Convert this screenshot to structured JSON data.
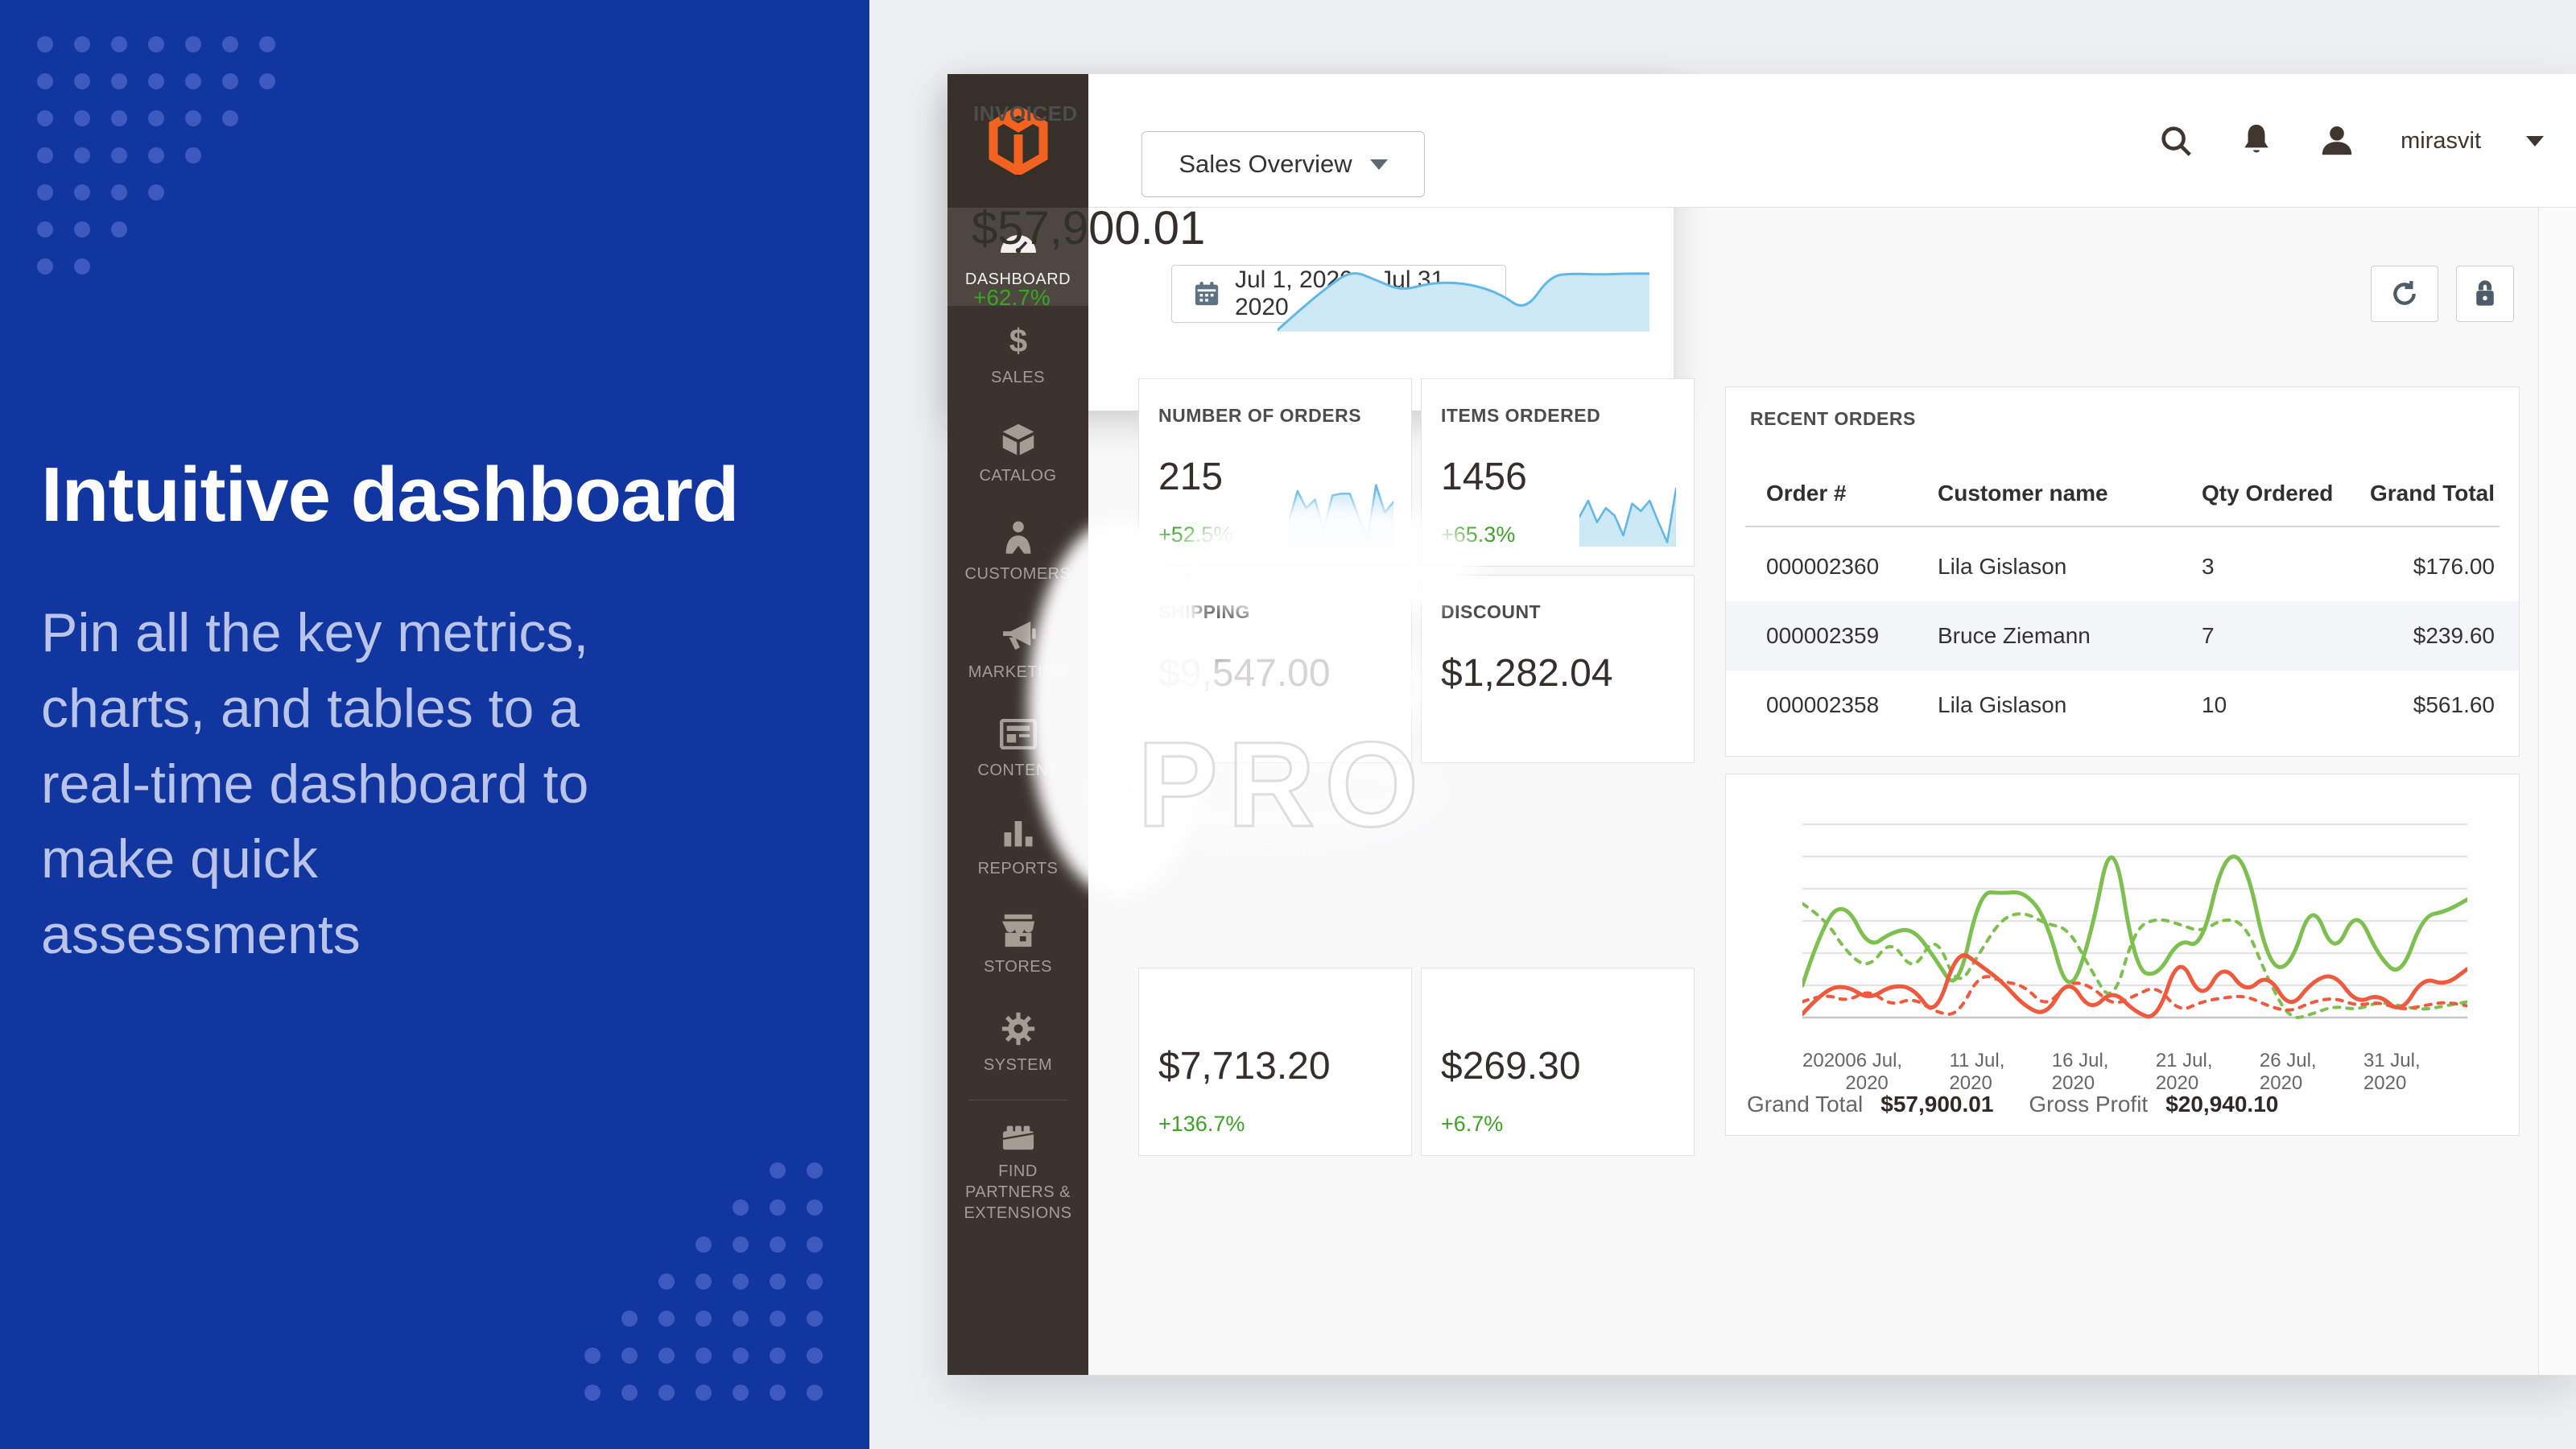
{
  "left_panel": {
    "heading": "Intuitive dashboard",
    "body_lines": [
      "Pin all the key metrics,",
      "charts, and tables to a",
      "real-time dashboard to",
      "make quick",
      "assessments"
    ],
    "bg_color": "#1236a0",
    "dot_color": "#3f5abf",
    "dots_top_left_rows": [
      7,
      7,
      6,
      5,
      4,
      3,
      2
    ],
    "dots_bottom_right_rows": [
      2,
      3,
      4,
      5,
      6,
      7,
      7
    ]
  },
  "admin": {
    "topbar": {
      "view_selector": "Sales Overview",
      "username": "mirasvit"
    },
    "sidebar": {
      "active": "DASHBOARD",
      "items": [
        {
          "label": "DASHBOARD",
          "icon": "dashboard"
        },
        {
          "label": "SALES",
          "icon": "sales"
        },
        {
          "label": "CATALOG",
          "icon": "catalog"
        },
        {
          "label": "CUSTOMERS",
          "icon": "customers"
        },
        {
          "label": "MARKETING",
          "icon": "marketing"
        },
        {
          "label": "CONTENT",
          "icon": "content"
        },
        {
          "label": "REPORTS",
          "icon": "reports"
        },
        {
          "label": "STORES",
          "icon": "stores"
        },
        {
          "label": "SYSTEM",
          "icon": "system"
        },
        {
          "label": "FIND PARTNERS & EXTENSIONS",
          "icon": "partners"
        }
      ]
    },
    "toolbar": {
      "date_range": "Jul 1, 2020 – Jul 31, 2020"
    },
    "cards": {
      "orders": {
        "title": "NUMBER OF ORDERS",
        "value": "215",
        "delta": "+52.5%",
        "spark": [
          30,
          65,
          45,
          55,
          20,
          60,
          62,
          62,
          35,
          8,
          72,
          40,
          52
        ]
      },
      "items": {
        "title": "ITEMS ORDERED",
        "value": "1456",
        "delta": "+65.3%",
        "spark": [
          40,
          62,
          33,
          52,
          42,
          15,
          58,
          48,
          62,
          33,
          6,
          78
        ]
      },
      "shipping": {
        "title": "SHIPPING",
        "value": "$9,547.00",
        "obscured_by_watermark": true
      },
      "discount": {
        "title": "DISCOUNT",
        "value": "$1,282.04"
      },
      "invoiced": {
        "title": "INVOICED",
        "value": "$57,900.01",
        "delta": "+62.7%",
        "spark": [
          2,
          28,
          52,
          72,
          60,
          48,
          56,
          58,
          54,
          44,
          24,
          66,
          68,
          67,
          68,
          68
        ]
      },
      "partial_cards": [
        {
          "value": "$7,713.20",
          "delta": "+136.7%"
        },
        {
          "value": "$269.30",
          "delta": "+6.7%"
        }
      ]
    },
    "recent_orders": {
      "title": "RECENT ORDERS",
      "columns": [
        "Order #",
        "Customer name",
        "Qty Ordered",
        "Grand Total"
      ],
      "rows": [
        [
          "000002360",
          "Lila Gislason",
          "3",
          "$176.00"
        ],
        [
          "000002359",
          "Bruce Ziemann",
          "7",
          "$239.60"
        ],
        [
          "000002358",
          "Lila Gislason",
          "10",
          "$561.60"
        ]
      ]
    },
    "chart": {
      "x_labels": [
        "2020",
        "06 Jul, 2020",
        "11 Jul, 2020",
        "16 Jul, 2020",
        "21 Jul, 2020",
        "26 Jul, 2020",
        "31 Jul, 2020"
      ],
      "footer": {
        "grand_total_label": "Grand Total",
        "grand_total_value": "$57,900.01",
        "gross_profit_label": "Gross Profit",
        "gross_profit_value": "$20,940.10"
      }
    },
    "watermark": {
      "text": "PRO"
    }
  },
  "chart_data": {
    "type": "line",
    "x": [
      1,
      2,
      3,
      4,
      5,
      6,
      7,
      8,
      9,
      10,
      11,
      12,
      13,
      14,
      15,
      16,
      17,
      18,
      19,
      20,
      21,
      22,
      23,
      24,
      25,
      26,
      27,
      28,
      29,
      30,
      31
    ],
    "x_tick_labels": [
      "2020",
      "06 Jul, 2020",
      "11 Jul, 2020",
      "16 Jul, 2020",
      "21 Jul, 2020",
      "26 Jul, 2020",
      "31 Jul, 2020"
    ],
    "first_label_partially_hidden": true,
    "ylabel": "",
    "y_axis": "unlabeled (no tick values visible)",
    "ylim": [
      0,
      100
    ],
    "grid": "horizontal",
    "legend": "not visible (hidden behind pinned card)",
    "series": [
      {
        "name": "Grand Total (current)",
        "style": "solid",
        "color": "#7dc04f",
        "values": [
          22,
          55,
          62,
          40,
          48,
          50,
          35,
          18,
          68,
          67,
          68,
          55,
          15,
          45,
          100,
          30,
          26,
          45,
          40,
          86,
          84,
          32,
          30,
          64,
          36,
          60,
          36,
          26,
          56,
          58,
          64
        ]
      },
      {
        "name": "Grand Total (previous)",
        "style": "dashed",
        "color": "#7dc04f",
        "values": [
          62,
          55,
          38,
          30,
          45,
          28,
          48,
          20,
          38,
          55,
          58,
          52,
          50,
          30,
          12,
          50,
          55,
          52,
          48,
          55,
          52,
          25,
          5,
          8,
          12,
          10,
          14,
          12,
          10,
          12,
          14
        ]
      },
      {
        "name": "Gross Profit (current)",
        "style": "solid",
        "color": "#ef5a3e",
        "values": [
          8,
          20,
          22,
          15,
          22,
          21,
          6,
          40,
          32,
          24,
          12,
          7,
          26,
          9,
          20,
          9,
          5,
          38,
          14,
          33,
          18,
          28,
          10,
          24,
          28,
          13,
          18,
          8,
          26,
          22,
          30
        ]
      },
      {
        "name": "Gross Profit (previous)",
        "style": "dashed",
        "color": "#ef5a3e",
        "values": [
          14,
          18,
          14,
          20,
          12,
          16,
          9,
          7,
          28,
          24,
          22,
          11,
          24,
          22,
          12,
          17,
          22,
          9,
          14,
          16,
          17,
          12,
          9,
          14,
          16,
          12,
          14,
          10,
          12,
          14,
          12
        ]
      }
    ]
  },
  "colors": {
    "accent_orange": "#f26322",
    "delta_green": "#3da327",
    "spark_line": "#62b7e6",
    "spark_fill": "#cde9f6",
    "sidebar_bg": "#3b332d",
    "panel_blue": "#1236a0",
    "slate_icon": "#5d7282"
  }
}
